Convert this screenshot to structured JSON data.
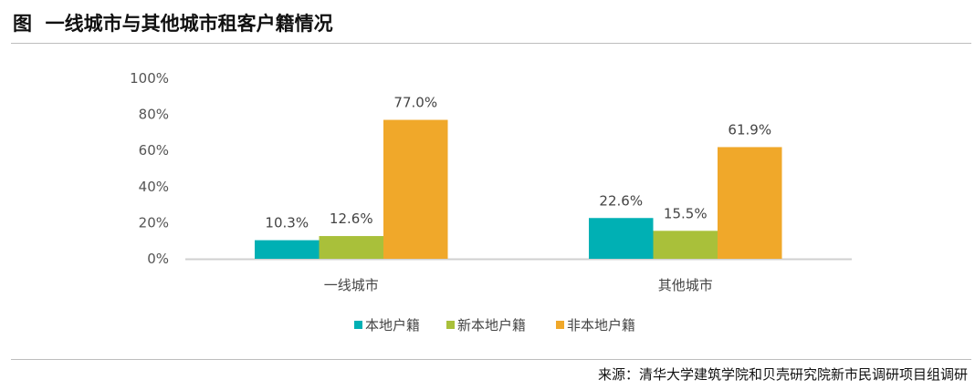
{
  "title": "图  一线城市与其他城市租客户籍情况",
  "source": "来源：清华大学建筑学院和贝壳研究院新市民调研项目组调研",
  "chart_data": {
    "type": "bar",
    "categories": [
      "一线城市",
      "其他城市"
    ],
    "series": [
      {
        "name": "本地户籍",
        "values": [
          10.3,
          22.6
        ],
        "color": "#00B0B4"
      },
      {
        "name": "新本地户籍",
        "values": [
          12.6,
          15.5
        ],
        "color": "#A9C03A"
      },
      {
        "name": "非本地户籍",
        "values": [
          77.0,
          61.9
        ],
        "color": "#F0A82A"
      }
    ],
    "ylim": [
      0,
      100
    ],
    "yticks": [
      "0%",
      "20%",
      "40%",
      "60%",
      "80%",
      "100%"
    ],
    "data_label_format": "%",
    "grid": false,
    "legend": "bottom"
  }
}
